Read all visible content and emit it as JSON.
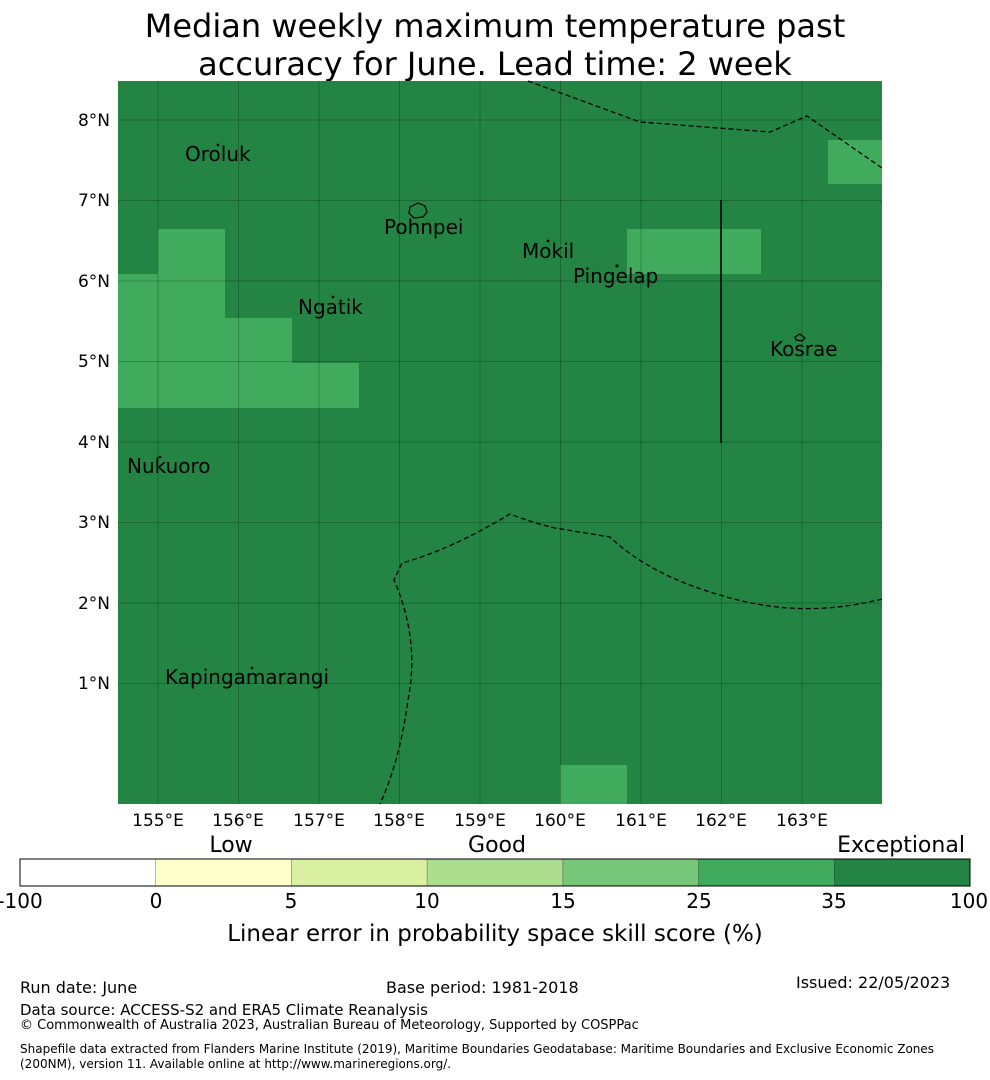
{
  "title_line1": "Median weekly maximum temperature past",
  "title_line2": "accuracy for June. Lead time: 2 week",
  "map": {
    "lat_labels": [
      "8°N",
      "7°N",
      "6°N",
      "5°N",
      "4°N",
      "3°N",
      "2°N",
      "1°N"
    ],
    "lon_labels": [
      "155°E",
      "156°E",
      "157°E",
      "158°E",
      "159°E",
      "160°E",
      "161°E",
      "162°E",
      "163°E"
    ],
    "places": [
      "Oroluk",
      "Pohnpei",
      "Mokil",
      "Pingelap",
      "Ngatik",
      "Kosrae",
      "Nukuoro",
      "Kapingamarangi"
    ],
    "colors": {
      "exceptional": "#238443",
      "high": "#41ab5d"
    }
  },
  "legend": {
    "category_low": "Low",
    "category_good": "Good",
    "category_exceptional": "Exceptional",
    "ticks": [
      "-100",
      "0",
      "5",
      "10",
      "15",
      "25",
      "35",
      "100"
    ],
    "colors": [
      "#ffffff",
      "#ffffcc",
      "#d9f0a3",
      "#addd8e",
      "#78c679",
      "#41ab5d",
      "#238443"
    ],
    "label": "Linear error in probability space skill score (%)"
  },
  "footer": {
    "run_date": "Run date: June",
    "base_period": "Base period: 1981-2018",
    "issued": "Issued: 22/05/2023",
    "data_source": "Data source: ACCESS-S2 and ERA5 Climate Reanalysis",
    "copyright": "© Commonwealth of Australia 2023, Australian Bureau of Meteorology, Supported by COSPPac",
    "shapefile_line1": "Shapefile data extracted from Flanders Marine Institute (2019), Maritime Boundaries Geodatabase: Maritime Boundaries and Exclusive Economic Zones",
    "shapefile_line2": "(200NM), version 11. Available online at http://www.marineregions.org/."
  }
}
